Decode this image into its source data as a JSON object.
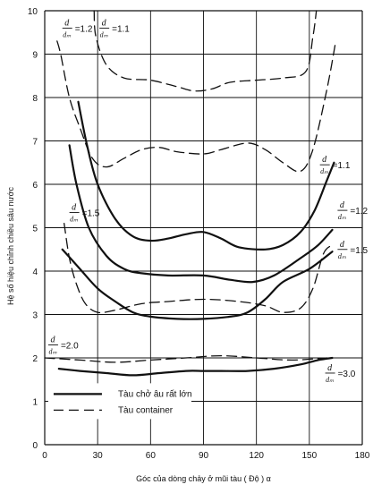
{
  "chart_data": {
    "type": "line",
    "title": "",
    "xlabel": "Góc của dòng chảy ở mũi tàu ( Độ ) α",
    "ylabel": "Hệ số hiệu chỉnh chiều sâu nước",
    "xlim": [
      0,
      180
    ],
    "ylim": [
      0,
      10
    ],
    "xticks": [
      0,
      30,
      60,
      90,
      120,
      150,
      180
    ],
    "yticks": [
      0,
      1,
      2,
      3,
      4,
      5,
      6,
      7,
      8,
      9,
      10
    ],
    "grid": true,
    "legend": {
      "placement": "bottom-left",
      "entries": [
        {
          "label": "Tàu chở âu rất lớn",
          "style": "solid"
        },
        {
          "label": "Tàu container",
          "style": "dashed"
        }
      ]
    },
    "colors": {
      "line": "#111111",
      "grid": "#111111",
      "background": "#ffffff"
    },
    "series": [
      {
        "style": "dashed",
        "ratio": "1.1",
        "points": [
          [
            28,
            10.0
          ],
          [
            29,
            9.4
          ],
          [
            35,
            8.75
          ],
          [
            45,
            8.45
          ],
          [
            60,
            8.4
          ],
          [
            75,
            8.25
          ],
          [
            85,
            8.15
          ],
          [
            95,
            8.2
          ],
          [
            105,
            8.35
          ],
          [
            120,
            8.4
          ],
          [
            135,
            8.45
          ],
          [
            148,
            8.6
          ],
          [
            152,
            9.4
          ],
          [
            154,
            10.0
          ]
        ]
      },
      {
        "style": "dashed",
        "ratio": "1.2",
        "points": [
          [
            7,
            9.3
          ],
          [
            9,
            9.0
          ],
          [
            14,
            8.0
          ],
          [
            20,
            7.3
          ],
          [
            27,
            6.6
          ],
          [
            35,
            6.4
          ],
          [
            45,
            6.6
          ],
          [
            55,
            6.8
          ],
          [
            65,
            6.85
          ],
          [
            75,
            6.75
          ],
          [
            90,
            6.7
          ],
          [
            100,
            6.8
          ],
          [
            115,
            6.95
          ],
          [
            125,
            6.8
          ],
          [
            135,
            6.5
          ],
          [
            145,
            6.3
          ],
          [
            152,
            6.8
          ],
          [
            160,
            8.2
          ],
          [
            165,
            9.3
          ]
        ]
      },
      {
        "style": "dashed",
        "ratio": "1.5",
        "points": [
          [
            11,
            5.1
          ],
          [
            14,
            4.3
          ],
          [
            18,
            3.7
          ],
          [
            23,
            3.25
          ],
          [
            30,
            3.05
          ],
          [
            40,
            3.1
          ],
          [
            55,
            3.25
          ],
          [
            70,
            3.3
          ],
          [
            90,
            3.35
          ],
          [
            110,
            3.3
          ],
          [
            125,
            3.2
          ],
          [
            135,
            3.05
          ],
          [
            145,
            3.15
          ],
          [
            152,
            3.6
          ],
          [
            158,
            4.4
          ],
          [
            163,
            4.6
          ]
        ]
      },
      {
        "style": "dashed",
        "ratio": "2.0",
        "points": [
          [
            0,
            2.0
          ],
          [
            20,
            1.95
          ],
          [
            40,
            1.9
          ],
          [
            60,
            1.95
          ],
          [
            80,
            2.0
          ],
          [
            100,
            2.05
          ],
          [
            120,
            2.0
          ],
          [
            140,
            1.95
          ],
          [
            160,
            2.0
          ]
        ]
      },
      {
        "style": "solid",
        "ratio": "1.1",
        "points": [
          [
            19,
            7.9
          ],
          [
            24,
            6.9
          ],
          [
            30,
            6.0
          ],
          [
            40,
            5.2
          ],
          [
            50,
            4.8
          ],
          [
            60,
            4.7
          ],
          [
            70,
            4.75
          ],
          [
            80,
            4.85
          ],
          [
            90,
            4.9
          ],
          [
            100,
            4.75
          ],
          [
            110,
            4.55
          ],
          [
            125,
            4.5
          ],
          [
            135,
            4.6
          ],
          [
            145,
            4.9
          ],
          [
            153,
            5.4
          ],
          [
            160,
            6.1
          ],
          [
            164,
            6.5
          ]
        ]
      },
      {
        "style": "solid",
        "ratio": "1.2",
        "points": [
          [
            14,
            6.9
          ],
          [
            18,
            6.0
          ],
          [
            25,
            5.0
          ],
          [
            35,
            4.35
          ],
          [
            45,
            4.05
          ],
          [
            55,
            3.95
          ],
          [
            70,
            3.9
          ],
          [
            90,
            3.9
          ],
          [
            105,
            3.8
          ],
          [
            118,
            3.75
          ],
          [
            130,
            3.9
          ],
          [
            145,
            4.3
          ],
          [
            155,
            4.6
          ],
          [
            163,
            4.95
          ]
        ]
      },
      {
        "style": "solid",
        "ratio": "1.5",
        "points": [
          [
            10,
            4.5
          ],
          [
            20,
            4.05
          ],
          [
            30,
            3.6
          ],
          [
            40,
            3.3
          ],
          [
            50,
            3.05
          ],
          [
            60,
            2.95
          ],
          [
            75,
            2.9
          ],
          [
            90,
            2.9
          ],
          [
            105,
            2.95
          ],
          [
            115,
            3.05
          ],
          [
            125,
            3.35
          ],
          [
            135,
            3.75
          ],
          [
            150,
            4.05
          ],
          [
            163,
            4.45
          ]
        ]
      },
      {
        "style": "solid",
        "ratio": "3.0",
        "points": [
          [
            8,
            1.75
          ],
          [
            20,
            1.7
          ],
          [
            35,
            1.65
          ],
          [
            50,
            1.6
          ],
          [
            65,
            1.65
          ],
          [
            80,
            1.7
          ],
          [
            90,
            1.7
          ],
          [
            100,
            1.7
          ],
          [
            115,
            1.7
          ],
          [
            130,
            1.75
          ],
          [
            145,
            1.85
          ],
          [
            155,
            1.95
          ],
          [
            163,
            2.0
          ]
        ]
      }
    ],
    "annotations": [
      {
        "text": "d",
        "sub": "dₘ",
        "ratio": "=1.2",
        "x": 10,
        "y": 9.6
      },
      {
        "text": "d",
        "sub": "dₘ",
        "ratio": "=1.1",
        "x": 31,
        "y": 9.6
      },
      {
        "text": "d",
        "sub": "dₘ",
        "ratio": "=1.1",
        "x": 156,
        "y": 6.45
      },
      {
        "text": "d",
        "sub": "dₘ",
        "ratio": "=1.2",
        "x": 166,
        "y": 5.4
      },
      {
        "text": "d",
        "sub": "dₘ",
        "ratio": "=1.5",
        "x": 14,
        "y": 5.35
      },
      {
        "text": "d",
        "sub": "dₘ",
        "ratio": "=1.5",
        "x": 166,
        "y": 4.5
      },
      {
        "text": "d",
        "sub": "dₘ",
        "ratio": "=2.0",
        "x": 2,
        "y": 2.3
      },
      {
        "text": "d",
        "sub": "dₘ",
        "ratio": "=3.0",
        "x": 159,
        "y": 1.65
      }
    ]
  }
}
